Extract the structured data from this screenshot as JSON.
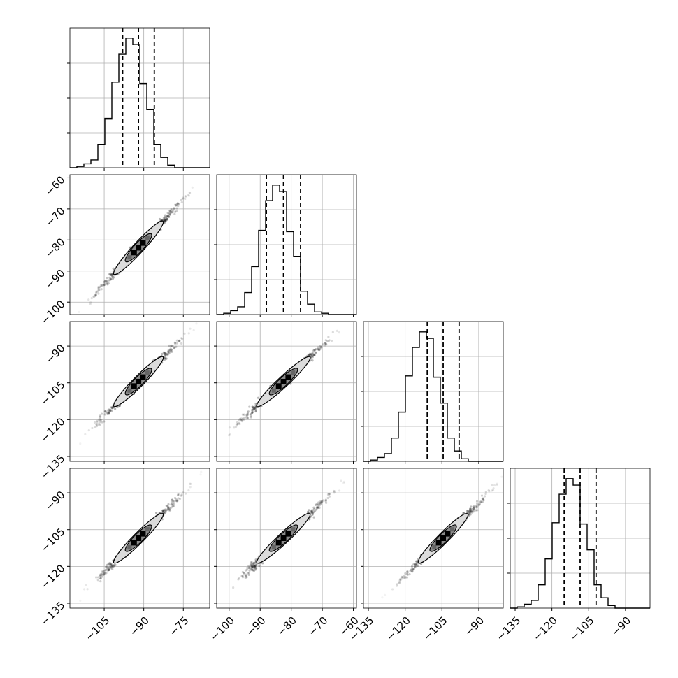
{
  "chart_data": {
    "type": "corner",
    "grid": true,
    "colors": {
      "line": "#000000",
      "grid": "#b0b0b0",
      "frame": "#000000"
    },
    "quantiles_label": "dashed lines at 16th, 50th and 84th percentiles",
    "histogram_bins": 20,
    "parameters": [
      {
        "range": [
          -118,
          -65
        ],
        "ticks": [
          -105,
          -90,
          -75
        ],
        "tick_labels": [
          "−105",
          "−90",
          "−75"
        ],
        "quantiles": [
          -98.0,
          -92.0,
          -86.0
        ],
        "bin_edges": [
          -118.0,
          -115.35,
          -112.7,
          -110.05,
          -107.4,
          -104.75,
          -102.1,
          -99.45,
          -96.8,
          -94.15,
          -91.5,
          -88.85,
          -86.2,
          -83.55,
          -80.9,
          -78.25,
          -75.6,
          -72.95,
          -70.3,
          -67.65,
          -65.0
        ],
        "counts": [
          0,
          1,
          3,
          6,
          18,
          38,
          66,
          88,
          100,
          95,
          65,
          45,
          18,
          8,
          2,
          0,
          0,
          0,
          0,
          0
        ]
      },
      {
        "range": [
          -104,
          -59
        ],
        "ticks": [
          -100,
          -90,
          -80,
          -70,
          -60
        ],
        "tick_labels": [
          "−100",
          "−90",
          "−80",
          "−70",
          "−60"
        ],
        "quantiles": [
          -88.0,
          -82.5,
          -77.0
        ],
        "bin_edges": [
          -104.0,
          -101.75,
          -99.5,
          -97.25,
          -95.0,
          -92.75,
          -90.5,
          -88.25,
          -86.0,
          -83.75,
          -81.5,
          -79.25,
          -77.0,
          -74.75,
          -72.5,
          -70.25,
          -68.0,
          -65.75,
          -63.5,
          -61.25,
          -59.0
        ],
        "counts": [
          0,
          1,
          3,
          6,
          17,
          37,
          65,
          88,
          100,
          95,
          64,
          45,
          18,
          8,
          2,
          1,
          0,
          0,
          0,
          0
        ]
      },
      {
        "range": [
          -137,
          -80
        ],
        "ticks": [
          -135,
          -120,
          -105,
          -90
        ],
        "tick_labels": [
          "−135",
          "−120",
          "−105",
          "−90"
        ],
        "quantiles": [
          -111.0,
          -104.5,
          -98.0
        ],
        "bin_edges": [
          -137.0,
          -134.15,
          -131.3,
          -128.45,
          -125.6,
          -122.75,
          -119.9,
          -117.05,
          -114.2,
          -111.35,
          -108.5,
          -105.65,
          -102.8,
          -99.95,
          -97.1,
          -94.25,
          -91.4,
          -88.55,
          -85.7,
          -82.85,
          -80.0
        ],
        "counts": [
          0,
          1,
          3,
          6,
          18,
          38,
          66,
          88,
          100,
          95,
          65,
          45,
          18,
          8,
          2,
          0,
          0,
          0,
          0,
          0
        ]
      },
      {
        "range": [
          -137,
          -80
        ],
        "ticks": [
          -135,
          -120,
          -105,
          -90
        ],
        "tick_labels": [
          "−135",
          "−120",
          "−105",
          "−90"
        ],
        "quantiles": [
          -115.0,
          -108.5,
          -102.0
        ],
        "bin_edges": [
          -137.0,
          -134.15,
          -131.3,
          -128.45,
          -125.6,
          -122.75,
          -119.9,
          -117.05,
          -114.2,
          -111.35,
          -108.5,
          -105.65,
          -102.8,
          -99.95,
          -97.1,
          -94.25,
          -91.4,
          -88.55,
          -85.7,
          -82.85,
          -80.0
        ],
        "counts": [
          0,
          1,
          3,
          6,
          18,
          38,
          66,
          88,
          100,
          95,
          65,
          45,
          18,
          8,
          2,
          0,
          0,
          0,
          0,
          0
        ]
      }
    ],
    "pairs": [
      {
        "x_param": 0,
        "y_param": 1,
        "center": [
          -92.0,
          -82.5
        ],
        "sigma": [
          6.0,
          5.5
        ],
        "correlation": 0.99
      },
      {
        "x_param": 0,
        "y_param": 2,
        "center": [
          -92.0,
          -104.5
        ],
        "sigma": [
          6.0,
          6.5
        ],
        "correlation": 0.99
      },
      {
        "x_param": 1,
        "y_param": 2,
        "center": [
          -82.5,
          -104.5
        ],
        "sigma": [
          5.5,
          6.5
        ],
        "correlation": 0.99
      },
      {
        "x_param": 0,
        "y_param": 3,
        "center": [
          -92.0,
          -108.5
        ],
        "sigma": [
          6.0,
          6.5
        ],
        "correlation": 0.99
      },
      {
        "x_param": 1,
        "y_param": 3,
        "center": [
          -82.5,
          -108.5
        ],
        "sigma": [
          5.5,
          6.5
        ],
        "correlation": 0.99
      },
      {
        "x_param": 2,
        "y_param": 3,
        "center": [
          -104.5,
          -108.5
        ],
        "sigma": [
          6.5,
          6.5
        ],
        "correlation": 0.99
      }
    ]
  }
}
